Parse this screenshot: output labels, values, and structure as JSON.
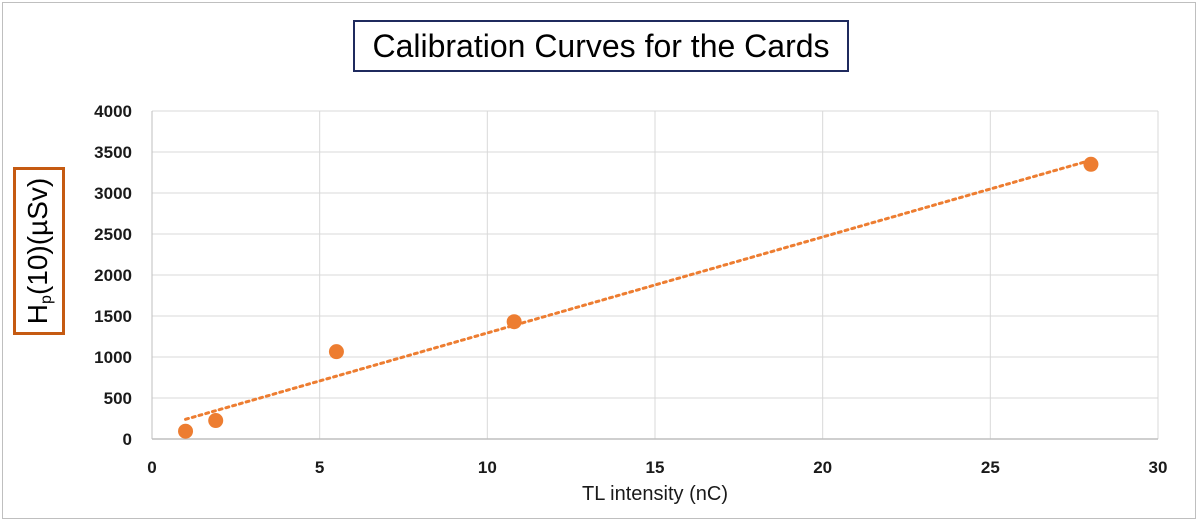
{
  "chart_data": {
    "type": "scatter",
    "title": "Calibration Curves for the Cards",
    "xlabel": "TL intensity (nC)",
    "ylabel": {
      "main": "H",
      "sub": "p",
      "rest": "(10)(µSv)"
    },
    "xlim": [
      0,
      30
    ],
    "ylim": [
      0,
      4000
    ],
    "xticks": [
      0,
      5,
      10,
      15,
      20,
      25,
      30
    ],
    "yticks": [
      0,
      500,
      1000,
      1500,
      2000,
      2500,
      3000,
      3500,
      4000
    ],
    "grid": true,
    "series": [
      {
        "x": [
          1.0,
          1.9,
          5.5,
          10.8,
          28.0
        ],
        "y": [
          95,
          225,
          1065,
          1430,
          3350
        ],
        "color": "#ed7d31"
      }
    ],
    "trendline": {
      "type": "linear",
      "style": "dotted",
      "color": "#ed7d31",
      "x": [
        1.0,
        28.0
      ],
      "y": [
        240,
        3400
      ]
    }
  },
  "colors": {
    "title_border": "#1f2a5e",
    "ylabel_border": "#c55a11",
    "grid": "#d9d9d9",
    "axis": "#bfbfbf"
  }
}
